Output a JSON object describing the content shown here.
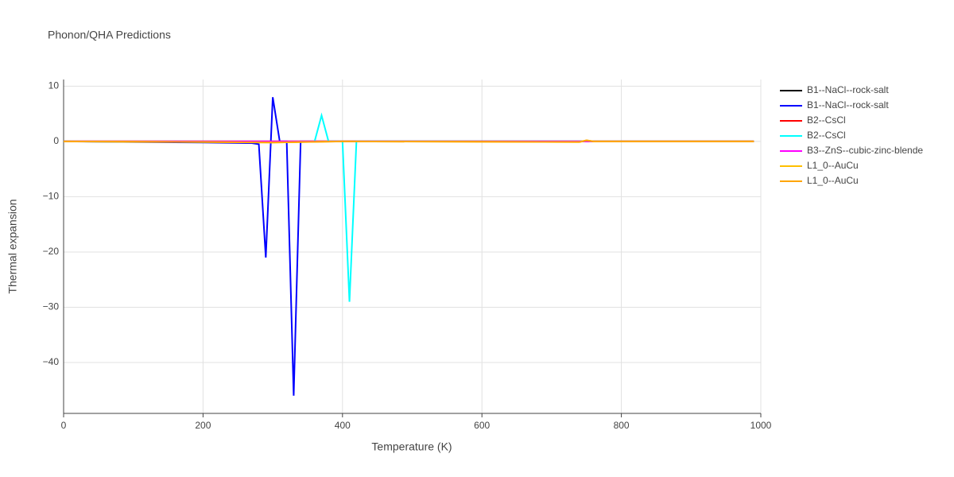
{
  "chart_data": {
    "type": "line",
    "title": "Phonon/QHA Predictions",
    "x_label": "Temperature (K)",
    "y_label": "Thermal expansion",
    "xlim": [
      0,
      1000
    ],
    "ylim": [
      -49.2,
      11.2
    ],
    "xticks": [
      0,
      200,
      400,
      600,
      800,
      1000
    ],
    "yticks": [
      10,
      0,
      {
        "value": -10,
        "label": "−10"
      },
      {
        "value": -20,
        "label": "−20"
      },
      {
        "value": -30,
        "label": "−30"
      },
      {
        "value": -40,
        "label": "−40"
      }
    ],
    "grid": true,
    "series": [
      {
        "name": "B1--NaCl--rock-salt",
        "color": "#000000",
        "x": [
          0,
          500,
          990
        ],
        "values": [
          0,
          0,
          0
        ]
      },
      {
        "name": "B1--NaCl--rock-salt",
        "color": "#0000ff",
        "x": [
          0,
          100,
          200,
          270,
          280,
          290,
          300,
          310,
          320,
          330,
          340,
          400,
          600,
          800,
          990
        ],
        "values": [
          0,
          -0.1,
          -0.2,
          -0.3,
          -0.5,
          -21,
          8,
          0,
          0,
          -46,
          0,
          0,
          0,
          0,
          0
        ]
      },
      {
        "name": "B2--CsCl",
        "color": "#ff0000",
        "x": [
          0,
          500,
          990
        ],
        "values": [
          0,
          0,
          0
        ]
      },
      {
        "name": "B2--CsCl",
        "color": "#00ffff",
        "x": [
          0,
          200,
          360,
          370,
          380,
          390,
          400,
          410,
          420,
          600,
          990
        ],
        "values": [
          0,
          -0.1,
          0,
          4.7,
          0,
          0,
          0,
          -29,
          0,
          0,
          0
        ]
      },
      {
        "name": "B3--ZnS--cubic-zinc-blende",
        "color": "#ff00ff",
        "x": [
          0,
          500,
          990
        ],
        "values": [
          0,
          0,
          0
        ]
      },
      {
        "name": "L1_0--AuCu",
        "color": "#ffbf00",
        "x": [
          0,
          200,
          300,
          400,
          740,
          750,
          760,
          800,
          990
        ],
        "values": [
          0,
          -0.1,
          -0.2,
          0,
          -0.1,
          0.2,
          0,
          0,
          0
        ]
      },
      {
        "name": "L1_0--AuCu",
        "color": "#ffa500",
        "x": [
          0,
          200,
          300,
          400,
          740,
          750,
          760,
          800,
          990
        ],
        "values": [
          0,
          -0.1,
          -0.2,
          0,
          -0.1,
          0.2,
          0,
          0,
          0
        ]
      }
    ]
  }
}
